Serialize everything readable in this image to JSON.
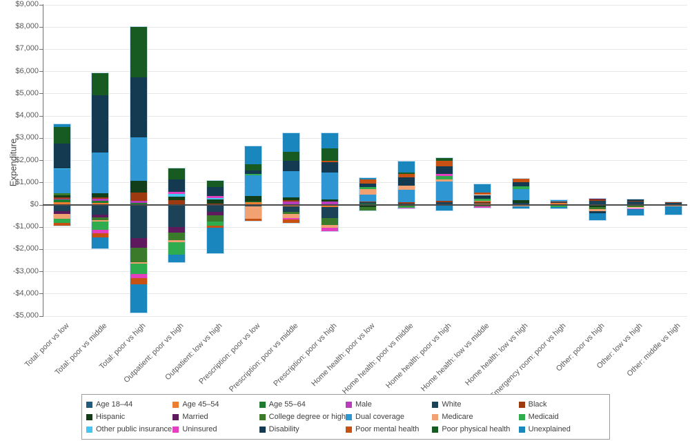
{
  "chart_data": {
    "type": "bar",
    "subtype": "stacked-with-negatives",
    "title": "",
    "xlabel": "",
    "ylabel": "Expenditure",
    "ylim": [
      -5000,
      9000
    ],
    "ytick_step": 1000,
    "ytick_labels": [
      "$9,000",
      "$8,000",
      "$7,000",
      "$6,000",
      "$5,000",
      "$4,000",
      "$3,000",
      "$2,000",
      "$1,000",
      "$0",
      "-$1,000",
      "-$2,000",
      "-$3,000",
      "-$4,000",
      "-$5,000"
    ],
    "grid": true,
    "legend_position": "bottom",
    "categories": [
      "Total: poor vs low",
      "Total: poor vs middle",
      "Total: poor vs high",
      "Outpatient: poor vs high",
      "Outpatient: low vs high",
      "Prescription: poor vs low",
      "Prescription: poor vs middle",
      "Prescription: poor vs high",
      "Home health: poor vs low",
      "Home health: poor vs middle",
      "Home health: poor vs high",
      "Home health: low vs middle",
      "Home health: low vs high",
      "Emergency room: poor vs high",
      "Other: poor vs high",
      "Other: low vs high",
      "Other: middle vs high"
    ],
    "series": [
      {
        "name": "Age 18–44",
        "color": "#1F5C7E",
        "values": [
          30,
          0,
          0,
          0,
          0,
          0,
          0,
          0,
          0,
          0,
          40,
          0,
          0,
          40,
          0,
          0,
          0
        ]
      },
      {
        "name": "Age 45–54",
        "color": "#ED7D31",
        "values": [
          100,
          80,
          30,
          0,
          0,
          130,
          -60,
          -100,
          0,
          0,
          0,
          60,
          40,
          50,
          0,
          0,
          0
        ]
      },
      {
        "name": "Age 55–64",
        "color": "#1E7B30",
        "values": [
          120,
          100,
          70,
          30,
          0,
          30,
          40,
          0,
          50,
          0,
          0,
          0,
          0,
          0,
          0,
          0,
          40
        ]
      },
      {
        "name": "Male",
        "color": "#B93CBB",
        "values": [
          30,
          100,
          80,
          0,
          0,
          0,
          120,
          150,
          0,
          0,
          0,
          0,
          0,
          0,
          0,
          0,
          0
        ]
      },
      {
        "name": "White",
        "color": "#1C4257",
        "values": [
          -290,
          -450,
          -1490,
          -1000,
          -310,
          -60,
          -250,
          -480,
          60,
          50,
          90,
          40,
          40,
          40,
          200,
          140,
          40
        ]
      },
      {
        "name": "Black",
        "color": "#9E3A10",
        "values": [
          60,
          50,
          370,
          180,
          60,
          0,
          50,
          0,
          40,
          60,
          60,
          40,
          0,
          40,
          40,
          40,
          30
        ]
      },
      {
        "name": "Hispanic",
        "color": "#123F1A",
        "values": [
          80,
          190,
          550,
          160,
          180,
          240,
          130,
          100,
          -80,
          0,
          0,
          0,
          150,
          -40,
          -80,
          0,
          0
        ]
      },
      {
        "name": "Married",
        "color": "#5E1A5C",
        "values": [
          -110,
          -120,
          -435,
          -250,
          -150,
          0,
          0,
          0,
          0,
          0,
          0,
          0,
          0,
          0,
          50,
          0,
          0
        ]
      },
      {
        "name": "College degree or higher",
        "color": "#3B7A2A",
        "values": [
          100,
          -100,
          -650,
          -320,
          -280,
          0,
          -90,
          -310,
          -170,
          -50,
          0,
          -60,
          0,
          0,
          -110,
          -80,
          0
        ]
      },
      {
        "name": "Dual coverage",
        "color": "#2E96D2",
        "values": [
          1100,
          1850,
          1950,
          0,
          0,
          940,
          1180,
          1210,
          330,
          570,
          870,
          0,
          470,
          50,
          0,
          0,
          0
        ]
      },
      {
        "name": "Medicare",
        "color": "#F2A173",
        "values": [
          -220,
          -70,
          -65,
          -100,
          0,
          -560,
          -200,
          -130,
          230,
          190,
          80,
          60,
          -60,
          0,
          -90,
          -60,
          -70
        ]
      },
      {
        "name": "Medicaid",
        "color": "#2FAC4D",
        "values": [
          -190,
          -390,
          -465,
          -550,
          -190,
          60,
          0,
          0,
          100,
          -60,
          150,
          80,
          130,
          -60,
          0,
          0,
          0
        ]
      },
      {
        "name": "Other public insurance",
        "color": "#45C5F2",
        "values": [
          40,
          0,
          0,
          120,
          60,
          0,
          0,
          0,
          0,
          0,
          0,
          0,
          0,
          0,
          0,
          0,
          0
        ]
      },
      {
        "name": "Uninsured",
        "color": "#E33FC0",
        "values": [
          0,
          -130,
          -190,
          100,
          100,
          0,
          -60,
          -160,
          0,
          -50,
          120,
          -50,
          0,
          0,
          0,
          -40,
          0
        ]
      },
      {
        "name": "Disability",
        "color": "#143A52",
        "values": [
          1100,
          2550,
          2680,
          560,
          410,
          150,
          470,
          470,
          160,
          380,
          330,
          170,
          190,
          0,
          -80,
          80,
          0
        ]
      },
      {
        "name": "Poor mental health",
        "color": "#C75113",
        "values": [
          -120,
          -190,
          -275,
          0,
          -100,
          -80,
          -150,
          60,
          180,
          150,
          240,
          100,
          150,
          0,
          0,
          0,
          0
        ]
      },
      {
        "name": "Poor physical health",
        "color": "#175A22",
        "values": [
          750,
          1010,
          2270,
          500,
          280,
          280,
          400,
          560,
          0,
          50,
          130,
          0,
          0,
          0,
          0,
          0,
          0
        ]
      },
      {
        "name": "Unexplained",
        "color": "#1986BD",
        "values": [
          120,
          -510,
          -1280,
          -370,
          -1140,
          810,
          850,
          680,
          60,
          500,
          -250,
          370,
          -100,
          -50,
          -330,
          -300,
          -350
        ]
      }
    ]
  }
}
